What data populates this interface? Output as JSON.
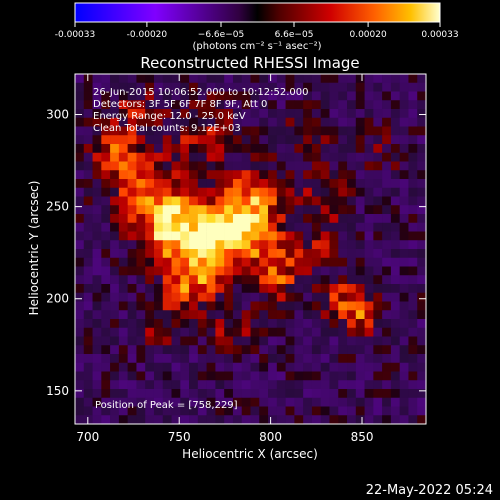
{
  "colorbar": {
    "tick_labels": [
      "-0.00033",
      "-0.00020",
      "−6.6e−05",
      "6.6e−05",
      "0.00020",
      "0.00033"
    ],
    "tick_values": [
      -0.00033,
      -0.0002,
      -6.6e-05,
      6.6e-05,
      0.0002,
      0.00033
    ],
    "range": [
      -0.00033,
      0.00033
    ],
    "unit_label": "(photons cm⁻² s⁻¹ asec⁻²)"
  },
  "chart_data": {
    "type": "heatmap",
    "title": "Reconstructed RHESSI Image",
    "xlabel": "Heliocentric X (arcsec)",
    "ylabel": "Heliocentric Y (arcsec)",
    "xlim": [
      693,
      885
    ],
    "ylim": [
      132,
      322
    ],
    "x_ticks": [
      700,
      750,
      800,
      850
    ],
    "y_ticks": [
      150,
      200,
      250,
      300
    ],
    "peak": [
      758,
      229
    ],
    "annotations": {
      "time_range": "26-Jun-2015 10:06:52.000 to 10:12:52.000",
      "detectors": "Detectors: 3F 5F 6F 7F 8F 9F, Att 0",
      "energy": "Energy Range: 12.0 - 25.0 keV",
      "clean": "Clean      Total counts: 9.12E+03",
      "peak_label": "Position of Peak = [758,229]"
    }
  },
  "footer": {
    "timestamp": "22-May-2022 05:24"
  }
}
